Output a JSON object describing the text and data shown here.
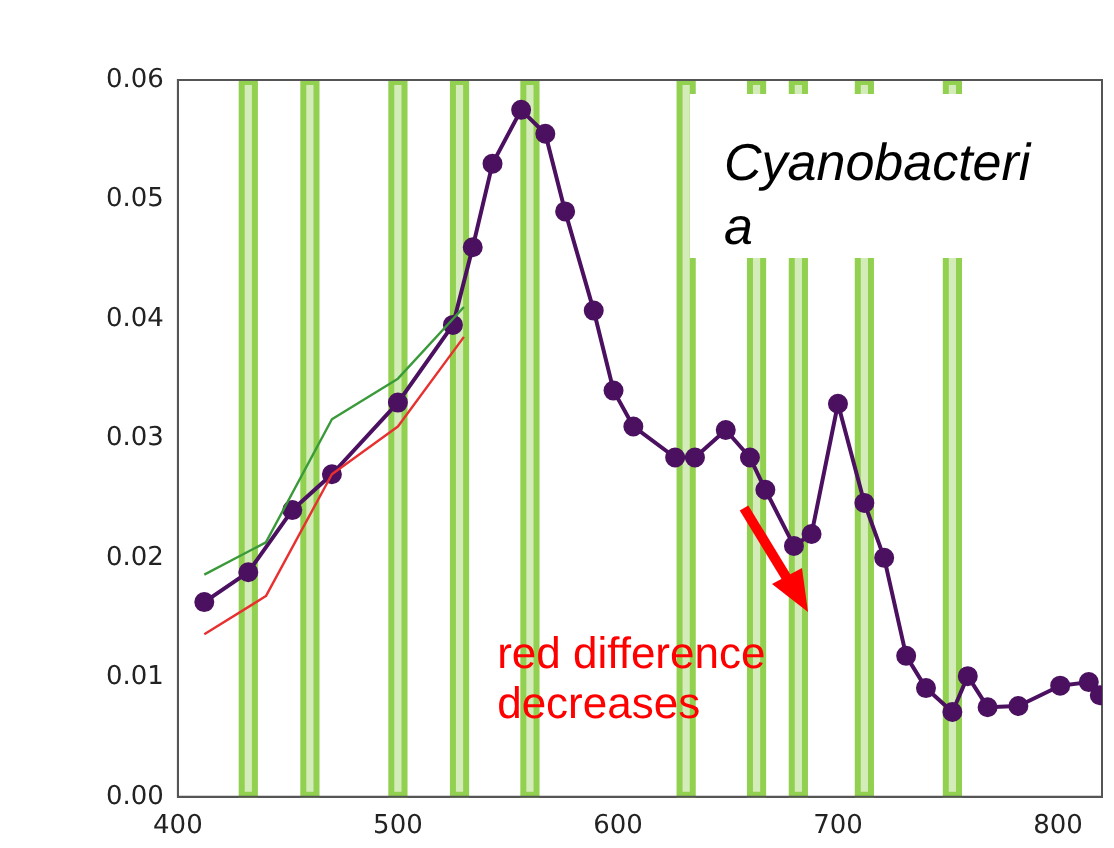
{
  "chart_data": {
    "type": "line",
    "title": "Cyanobacteria",
    "annotations": [
      {
        "text": "red difference decreases",
        "x": 686,
        "y": 0.0155
      }
    ],
    "xlim": [
      400,
      820
    ],
    "xticks": [
      400,
      500,
      600,
      700,
      800
    ],
    "ylim": [
      0,
      0.06
    ],
    "yticks": [
      {
        "value": 0,
        "label": "0.00"
      },
      0.01,
      0.02,
      0.03,
      0.04,
      0.05,
      0.06
    ],
    "grid": false,
    "legend": false,
    "series": [
      {
        "color": "#4b1060",
        "marker": "circle",
        "x": [
          412,
          432,
          452,
          470,
          500,
          525,
          534,
          543,
          556,
          567,
          576,
          589,
          598,
          607,
          626,
          635,
          649,
          660,
          667,
          680,
          688,
          700,
          712,
          721,
          731,
          740,
          752,
          759,
          768,
          782,
          801,
          814,
          819
        ],
        "values": [
          0.0163,
          0.0188,
          0.024,
          0.027,
          0.033,
          0.0395,
          0.046,
          0.053,
          0.0575,
          0.0555,
          0.049,
          0.0407,
          0.034,
          0.031,
          0.0284,
          0.0284,
          0.0307,
          0.0284,
          0.0257,
          0.021,
          0.022,
          0.0329,
          0.0246,
          0.02,
          0.0118,
          0.0091,
          0.0071,
          0.0101,
          0.0075,
          0.0076,
          0.0093,
          0.0096,
          0.0085
        ]
      },
      {
        "color": "#3a9a3a",
        "marker": "none",
        "x": [
          412,
          440,
          470,
          500,
          530
        ],
        "values": [
          0.0186,
          0.0213,
          0.0316,
          0.035,
          0.041
        ]
      },
      {
        "color": "#e83030",
        "marker": "none",
        "x": [
          412,
          440,
          470,
          500,
          530
        ],
        "values": [
          0.0136,
          0.0168,
          0.027,
          0.031,
          0.0385
        ]
      }
    ],
    "bands": [
      {
        "axis": "x",
        "from": 429,
        "to": 435,
        "color": "#92d050"
      },
      {
        "axis": "x",
        "from": 457,
        "to": 463,
        "color": "#92d050"
      },
      {
        "axis": "x",
        "from": 497,
        "to": 503,
        "color": "#92d050"
      },
      {
        "axis": "x",
        "from": 525,
        "to": 531,
        "color": "#92d050"
      },
      {
        "axis": "x",
        "from": 557,
        "to": 563,
        "color": "#92d050"
      },
      {
        "axis": "x",
        "from": 628,
        "to": 634,
        "color": "#92d050"
      },
      {
        "axis": "x",
        "from": 660,
        "to": 666,
        "color": "#92d050"
      },
      {
        "axis": "x",
        "from": 679,
        "to": 685,
        "color": "#92d050"
      },
      {
        "axis": "x",
        "from": 709,
        "to": 715,
        "color": "#92d050"
      },
      {
        "axis": "x",
        "from": 749,
        "to": 755,
        "color": "#92d050"
      }
    ]
  }
}
